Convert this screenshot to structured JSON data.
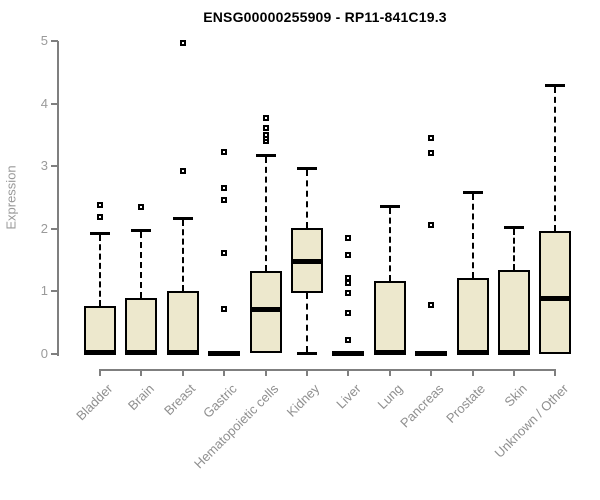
{
  "title": "ENSG00000255909 - RP11-841C19.3",
  "colors": {
    "box_fill": "#EDE8CD",
    "box_border": "#000000",
    "axis": "#7F7F7F",
    "tick_label": "#9A9A9A",
    "category_label": "#8F8F8F",
    "title": "#000000"
  },
  "chart_data": {
    "type": "boxplot",
    "title": "ENSG00000255909 - RP11-841C19.3",
    "xlabel": "",
    "ylabel": "Expression",
    "ylim": [
      0,
      5
    ],
    "yticks": [
      0,
      1,
      2,
      3,
      4,
      5
    ],
    "grid": false,
    "legend": "none",
    "categories": [
      "Bladder",
      "Brain",
      "Breast",
      "Gastric",
      "Hematopoietic cells",
      "Kidney",
      "Liver",
      "Lung",
      "Pancreas",
      "Prostate",
      "Skin",
      "Unknown / Other"
    ],
    "boxes": [
      {
        "label": "Bladder",
        "low": 0,
        "q1": 0,
        "median": 0.03,
        "q3": 0.76,
        "high": 1.93,
        "outliers": [
          2.19,
          2.38
        ]
      },
      {
        "label": "Brain",
        "low": 0,
        "q1": 0,
        "median": 0.03,
        "q3": 0.9,
        "high": 1.98,
        "outliers": [
          2.35
        ]
      },
      {
        "label": "Breast",
        "low": 0,
        "q1": 0,
        "median": 0.03,
        "q3": 1.01,
        "high": 2.17,
        "outliers": [
          2.92,
          4.98
        ]
      },
      {
        "label": "Gastric",
        "low": 0,
        "q1": 0,
        "median": 0.02,
        "q3": 0.03,
        "high": 0.03,
        "outliers": [
          0.72,
          1.61,
          2.46,
          2.65,
          3.23
        ]
      },
      {
        "label": "Hematopoietic cells",
        "low": 0,
        "q1": 0.01,
        "median": 0.72,
        "q3": 1.33,
        "high": 3.18,
        "outliers": [
          3.4,
          3.45,
          3.5,
          3.62,
          3.77
        ]
      },
      {
        "label": "Kidney",
        "low": 0,
        "q1": 0.98,
        "median": 1.49,
        "q3": 2.02,
        "high": 2.97,
        "outliers": []
      },
      {
        "label": "Liver",
        "low": 0,
        "q1": 0,
        "median": 0.02,
        "q3": 0.03,
        "high": 0.03,
        "outliers": [
          0.22,
          0.65,
          0.97,
          1.13,
          1.21,
          1.58,
          1.85
        ]
      },
      {
        "label": "Lung",
        "low": 0,
        "q1": 0,
        "median": 0.03,
        "q3": 1.17,
        "high": 2.37,
        "outliers": []
      },
      {
        "label": "Pancreas",
        "low": 0,
        "q1": 0,
        "median": 0.02,
        "q3": 0.03,
        "high": 0.03,
        "outliers": [
          0.79,
          2.07,
          3.21,
          3.45
        ]
      },
      {
        "label": "Prostate",
        "low": 0,
        "q1": 0,
        "median": 0.03,
        "q3": 1.22,
        "high": 2.59,
        "outliers": []
      },
      {
        "label": "Skin",
        "low": 0,
        "q1": 0,
        "median": 0.03,
        "q3": 1.35,
        "high": 2.03,
        "outliers": []
      },
      {
        "label": "Unknown / Other",
        "low": 0,
        "q1": 0,
        "median": 0.89,
        "q3": 1.96,
        "high": 4.3,
        "outliers": []
      }
    ]
  }
}
